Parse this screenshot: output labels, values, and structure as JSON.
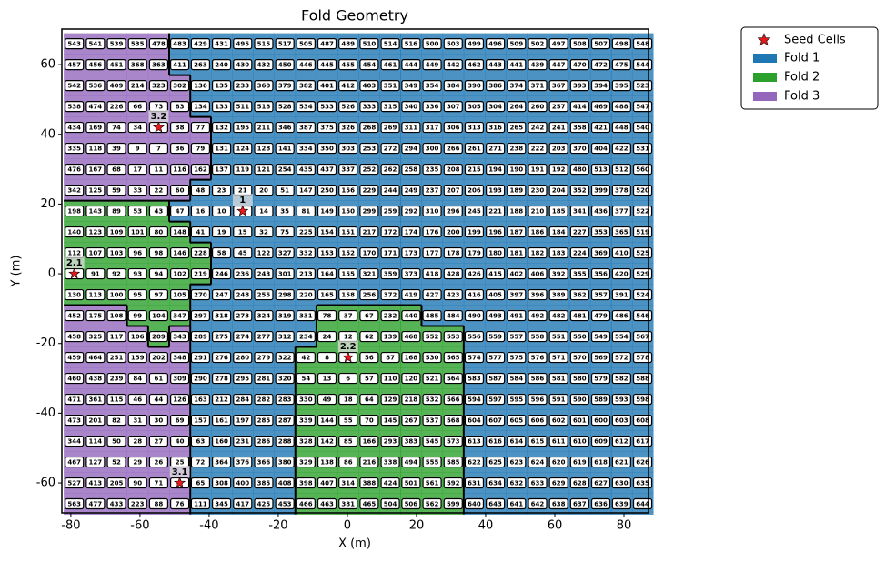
{
  "chart_data": {
    "type": "heatmap",
    "title": "Fold Geometry",
    "x_label": "X (m)",
    "y_label": "Y (m)",
    "xlim": [
      -82.6,
      87.1
    ],
    "ylim": [
      -68.6,
      70.2
    ],
    "xticks": [
      -80,
      -60,
      -40,
      -20,
      0,
      20,
      40,
      60,
      80
    ],
    "yticks": [
      -60,
      -40,
      -20,
      0,
      20,
      40,
      60
    ],
    "x": [
      -79,
      -72.9,
      -66.8,
      -60.7,
      -54.6,
      -48.5,
      -42.5,
      -36.4,
      -30.3,
      -24.2,
      -18.1,
      -12.0,
      -5.9,
      0.2,
      6.3,
      12.4,
      18.4,
      24.5,
      30.6,
      36.7,
      42.8,
      48.9,
      55.0,
      61.1,
      67.2,
      73.3,
      79.3,
      85.4
    ],
    "y": [
      66,
      60,
      54,
      48,
      42,
      36,
      30,
      24,
      18,
      12,
      6,
      0,
      -6,
      -12,
      -18,
      -24,
      -30,
      -36,
      -42,
      -48,
      -54,
      -60,
      -66
    ],
    "series": [
      {
        "name": "Fold 1",
        "color": "#1f77b4"
      },
      {
        "name": "Fold 2",
        "color": "#2ca02c"
      },
      {
        "name": "Fold 3",
        "color": "#9467bd"
      }
    ],
    "seed_series": {
      "name": "Seed Cells",
      "color": "#e41a1c"
    },
    "seeds": [
      {
        "label": "1",
        "x": -30.3,
        "y": 18
      },
      {
        "label": "2.1",
        "x": -79,
        "y": 0
      },
      {
        "label": "2.2",
        "x": 0.2,
        "y": -24
      },
      {
        "label": "3.1",
        "x": -48.5,
        "y": -60
      },
      {
        "label": "3.2",
        "x": -54.6,
        "y": 42
      }
    ],
    "cells": [
      [
        543,
        541,
        539,
        535,
        478,
        483,
        429,
        431,
        495,
        515,
        517,
        505,
        487,
        489,
        510,
        514,
        516,
        500,
        503,
        499,
        496,
        509,
        502,
        497,
        508,
        507,
        498,
        548
      ],
      [
        457,
        456,
        451,
        368,
        363,
        411,
        263,
        240,
        430,
        432,
        450,
        446,
        445,
        455,
        454,
        461,
        444,
        449,
        442,
        462,
        443,
        441,
        439,
        447,
        470,
        472,
        475,
        544
      ],
      [
        542,
        536,
        409,
        214,
        323,
        302,
        136,
        135,
        233,
        360,
        379,
        382,
        401,
        412,
        403,
        351,
        349,
        354,
        384,
        390,
        386,
        374,
        371,
        367,
        393,
        394,
        395,
        523
      ],
      [
        538,
        474,
        226,
        66,
        73,
        83,
        134,
        133,
        511,
        518,
        528,
        534,
        533,
        526,
        333,
        315,
        340,
        336,
        307,
        305,
        304,
        264,
        260,
        257,
        414,
        469,
        488,
        547
      ],
      [
        434,
        169,
        74,
        34,
        5,
        38,
        77,
        132,
        195,
        211,
        346,
        387,
        375,
        326,
        268,
        269,
        311,
        317,
        306,
        313,
        316,
        265,
        242,
        241,
        358,
        421,
        448,
        540
      ],
      [
        335,
        118,
        39,
        9,
        7,
        36,
        79,
        131,
        124,
        128,
        141,
        334,
        350,
        303,
        253,
        272,
        294,
        300,
        266,
        261,
        271,
        238,
        222,
        203,
        370,
        404,
        422,
        531
      ],
      [
        476,
        167,
        68,
        17,
        11,
        116,
        162,
        137,
        119,
        121,
        254,
        435,
        437,
        337,
        252,
        262,
        258,
        235,
        208,
        215,
        194,
        190,
        191,
        192,
        480,
        513,
        512,
        560
      ],
      [
        342,
        125,
        59,
        33,
        22,
        60,
        48,
        23,
        21,
        20,
        51,
        147,
        250,
        156,
        229,
        244,
        249,
        237,
        207,
        206,
        193,
        189,
        230,
        204,
        352,
        399,
        378,
        520
      ],
      [
        198,
        143,
        89,
        53,
        43,
        47,
        16,
        10,
        1,
        14,
        35,
        81,
        149,
        150,
        299,
        259,
        292,
        310,
        296,
        245,
        221,
        188,
        210,
        185,
        341,
        436,
        377,
        522
      ],
      [
        140,
        123,
        109,
        101,
        80,
        148,
        41,
        19,
        15,
        32,
        75,
        225,
        154,
        151,
        217,
        172,
        174,
        176,
        200,
        199,
        196,
        187,
        186,
        184,
        227,
        353,
        365,
        519
      ],
      [
        112,
        107,
        103,
        96,
        98,
        146,
        228,
        58,
        45,
        122,
        327,
        332,
        153,
        152,
        170,
        171,
        173,
        177,
        178,
        179,
        180,
        181,
        182,
        183,
        224,
        369,
        410,
        525
      ],
      [
        2,
        91,
        92,
        93,
        94,
        102,
        219,
        246,
        236,
        243,
        301,
        213,
        164,
        155,
        321,
        359,
        373,
        418,
        428,
        426,
        415,
        402,
        406,
        392,
        355,
        356,
        420,
        529
      ],
      [
        130,
        113,
        100,
        95,
        97,
        105,
        270,
        247,
        248,
        255,
        298,
        220,
        165,
        158,
        256,
        372,
        419,
        427,
        423,
        416,
        405,
        397,
        396,
        389,
        362,
        357,
        391,
        524
      ],
      [
        452,
        175,
        108,
        99,
        104,
        347,
        297,
        318,
        273,
        324,
        319,
        331,
        78,
        37,
        67,
        232,
        440,
        485,
        484,
        490,
        493,
        491,
        492,
        482,
        481,
        479,
        486,
        546
      ],
      [
        458,
        325,
        117,
        106,
        209,
        343,
        289,
        275,
        274,
        277,
        312,
        234,
        24,
        12,
        62,
        139,
        468,
        552,
        553,
        556,
        559,
        557,
        558,
        551,
        550,
        549,
        554,
        567
      ],
      [
        459,
        464,
        251,
        159,
        202,
        348,
        291,
        276,
        280,
        279,
        322,
        42,
        8,
        3,
        56,
        87,
        168,
        530,
        565,
        574,
        577,
        575,
        576,
        571,
        570,
        569,
        572,
        578
      ],
      [
        460,
        438,
        239,
        84,
        61,
        309,
        290,
        278,
        295,
        281,
        320,
        54,
        13,
        6,
        57,
        110,
        120,
        521,
        564,
        583,
        587,
        584,
        586,
        581,
        580,
        579,
        582,
        588
      ],
      [
        471,
        361,
        115,
        46,
        44,
        126,
        163,
        212,
        284,
        282,
        283,
        330,
        49,
        18,
        64,
        129,
        218,
        532,
        566,
        594,
        597,
        595,
        596,
        591,
        590,
        589,
        593,
        598
      ],
      [
        473,
        201,
        82,
        31,
        30,
        69,
        157,
        161,
        197,
        285,
        287,
        339,
        144,
        55,
        70,
        145,
        267,
        537,
        568,
        604,
        607,
        605,
        606,
        602,
        601,
        600,
        603,
        608
      ],
      [
        344,
        114,
        50,
        28,
        27,
        40,
        63,
        160,
        231,
        286,
        288,
        328,
        142,
        85,
        166,
        293,
        383,
        545,
        573,
        613,
        616,
        614,
        615,
        611,
        610,
        609,
        612,
        617
      ],
      [
        467,
        127,
        52,
        29,
        26,
        25,
        72,
        364,
        376,
        366,
        380,
        329,
        138,
        86,
        216,
        338,
        494,
        555,
        585,
        622,
        625,
        623,
        624,
        620,
        619,
        618,
        621,
        626
      ],
      [
        527,
        413,
        205,
        90,
        71,
        4,
        65,
        308,
        400,
        385,
        408,
        398,
        407,
        314,
        388,
        424,
        501,
        561,
        592,
        631,
        634,
        632,
        633,
        629,
        628,
        627,
        630,
        635
      ],
      [
        563,
        477,
        433,
        223,
        88,
        76,
        111,
        345,
        417,
        425,
        453,
        466,
        463,
        381,
        465,
        504,
        506,
        562,
        599,
        640,
        643,
        641,
        642,
        638,
        637,
        636,
        639,
        644
      ]
    ],
    "folds": [
      [
        3,
        3,
        3,
        3,
        3,
        1,
        1,
        1,
        1,
        1,
        1,
        1,
        1,
        1,
        1,
        1,
        1,
        1,
        1,
        1,
        1,
        1,
        1,
        1,
        1,
        1,
        1,
        1
      ],
      [
        3,
        3,
        3,
        3,
        3,
        1,
        1,
        1,
        1,
        1,
        1,
        1,
        1,
        1,
        1,
        1,
        1,
        1,
        1,
        1,
        1,
        1,
        1,
        1,
        1,
        1,
        1,
        1
      ],
      [
        3,
        3,
        3,
        3,
        3,
        3,
        1,
        1,
        1,
        1,
        1,
        1,
        1,
        1,
        1,
        1,
        1,
        1,
        1,
        1,
        1,
        1,
        1,
        1,
        1,
        1,
        1,
        1
      ],
      [
        3,
        3,
        3,
        3,
        3,
        3,
        1,
        1,
        1,
        1,
        1,
        1,
        1,
        1,
        1,
        1,
        1,
        1,
        1,
        1,
        1,
        1,
        1,
        1,
        1,
        1,
        1,
        1
      ],
      [
        3,
        3,
        3,
        3,
        3,
        3,
        3,
        1,
        1,
        1,
        1,
        1,
        1,
        1,
        1,
        1,
        1,
        1,
        1,
        1,
        1,
        1,
        1,
        1,
        1,
        1,
        1,
        1
      ],
      [
        3,
        3,
        3,
        3,
        3,
        3,
        3,
        1,
        1,
        1,
        1,
        1,
        1,
        1,
        1,
        1,
        1,
        1,
        1,
        1,
        1,
        1,
        1,
        1,
        1,
        1,
        1,
        1
      ],
      [
        3,
        3,
        3,
        3,
        3,
        3,
        3,
        1,
        1,
        1,
        1,
        1,
        1,
        1,
        1,
        1,
        1,
        1,
        1,
        1,
        1,
        1,
        1,
        1,
        1,
        1,
        1,
        1
      ],
      [
        3,
        3,
        3,
        3,
        3,
        3,
        1,
        1,
        1,
        1,
        1,
        1,
        1,
        1,
        1,
        1,
        1,
        1,
        1,
        1,
        1,
        1,
        1,
        1,
        1,
        1,
        1,
        1
      ],
      [
        2,
        2,
        2,
        2,
        2,
        1,
        1,
        1,
        1,
        1,
        1,
        1,
        1,
        1,
        1,
        1,
        1,
        1,
        1,
        1,
        1,
        1,
        1,
        1,
        1,
        1,
        1,
        1
      ],
      [
        2,
        2,
        2,
        2,
        2,
        2,
        1,
        1,
        1,
        1,
        1,
        1,
        1,
        1,
        1,
        1,
        1,
        1,
        1,
        1,
        1,
        1,
        1,
        1,
        1,
        1,
        1,
        1
      ],
      [
        2,
        2,
        2,
        2,
        2,
        2,
        2,
        1,
        1,
        1,
        1,
        1,
        1,
        1,
        1,
        1,
        1,
        1,
        1,
        1,
        1,
        1,
        1,
        1,
        1,
        1,
        1,
        1
      ],
      [
        2,
        2,
        2,
        2,
        2,
        2,
        2,
        1,
        1,
        1,
        1,
        1,
        1,
        1,
        1,
        1,
        1,
        1,
        1,
        1,
        1,
        1,
        1,
        1,
        1,
        1,
        1,
        1
      ],
      [
        2,
        2,
        2,
        2,
        2,
        2,
        1,
        1,
        1,
        1,
        1,
        1,
        1,
        1,
        1,
        1,
        1,
        1,
        1,
        1,
        1,
        1,
        1,
        1,
        1,
        1,
        1,
        1
      ],
      [
        3,
        3,
        3,
        2,
        2,
        2,
        1,
        1,
        1,
        1,
        1,
        1,
        2,
        2,
        2,
        2,
        2,
        1,
        1,
        1,
        1,
        1,
        1,
        1,
        1,
        1,
        1,
        1
      ],
      [
        3,
        3,
        3,
        3,
        2,
        3,
        1,
        1,
        1,
        1,
        1,
        1,
        2,
        2,
        2,
        2,
        2,
        2,
        2,
        1,
        1,
        1,
        1,
        1,
        1,
        1,
        1,
        1
      ],
      [
        3,
        3,
        3,
        3,
        3,
        3,
        1,
        1,
        1,
        1,
        1,
        2,
        2,
        2,
        2,
        2,
        2,
        2,
        2,
        1,
        1,
        1,
        1,
        1,
        1,
        1,
        1,
        1
      ],
      [
        3,
        3,
        3,
        3,
        3,
        3,
        1,
        1,
        1,
        1,
        1,
        2,
        2,
        2,
        2,
        2,
        2,
        2,
        2,
        1,
        1,
        1,
        1,
        1,
        1,
        1,
        1,
        1
      ],
      [
        3,
        3,
        3,
        3,
        3,
        3,
        1,
        1,
        1,
        1,
        1,
        2,
        2,
        2,
        2,
        2,
        2,
        2,
        2,
        1,
        1,
        1,
        1,
        1,
        1,
        1,
        1,
        1
      ],
      [
        3,
        3,
        3,
        3,
        3,
        3,
        1,
        1,
        1,
        1,
        1,
        2,
        2,
        2,
        2,
        2,
        2,
        2,
        2,
        1,
        1,
        1,
        1,
        1,
        1,
        1,
        1,
        1
      ],
      [
        3,
        3,
        3,
        3,
        3,
        3,
        1,
        1,
        1,
        1,
        1,
        2,
        2,
        2,
        2,
        2,
        2,
        2,
        2,
        1,
        1,
        1,
        1,
        1,
        1,
        1,
        1,
        1
      ],
      [
        3,
        3,
        3,
        3,
        3,
        3,
        1,
        1,
        1,
        1,
        1,
        2,
        2,
        2,
        2,
        2,
        2,
        2,
        2,
        1,
        1,
        1,
        1,
        1,
        1,
        1,
        1,
        1
      ],
      [
        3,
        3,
        3,
        3,
        3,
        3,
        1,
        1,
        1,
        1,
        1,
        2,
        2,
        2,
        2,
        2,
        2,
        2,
        2,
        1,
        1,
        1,
        1,
        1,
        1,
        1,
        1,
        1
      ],
      [
        3,
        3,
        3,
        3,
        3,
        3,
        1,
        1,
        1,
        1,
        1,
        2,
        2,
        2,
        2,
        2,
        2,
        2,
        2,
        1,
        1,
        1,
        1,
        1,
        1,
        1,
        1,
        1
      ]
    ]
  }
}
